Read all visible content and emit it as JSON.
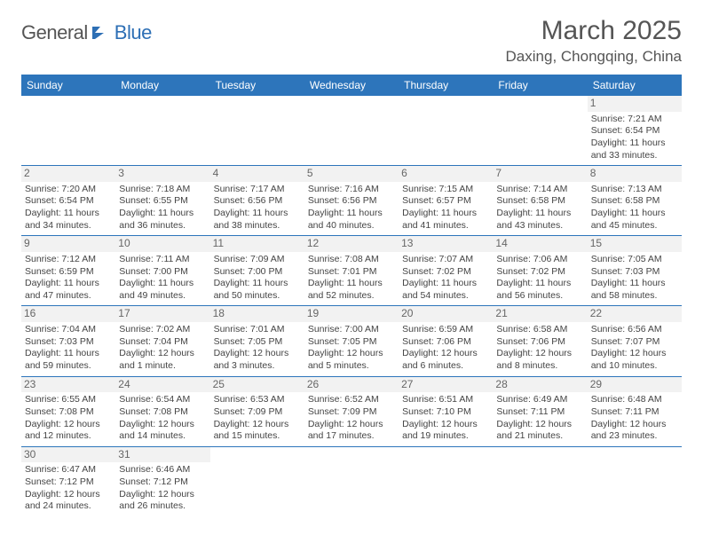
{
  "logo": {
    "text1": "General",
    "text2": "Blue"
  },
  "title": "March 2025",
  "location": "Daxing, Chongqing, China",
  "colors": {
    "header_bg": "#2d75bb",
    "header_text": "#ffffff",
    "border": "#2d75bb",
    "daynum_bg": "#f2f2f2"
  },
  "weekdays": [
    "Sunday",
    "Monday",
    "Tuesday",
    "Wednesday",
    "Thursday",
    "Friday",
    "Saturday"
  ],
  "weeks": [
    [
      null,
      null,
      null,
      null,
      null,
      null,
      {
        "d": "1",
        "r": "Sunrise: 7:21 AM",
        "s": "Sunset: 6:54 PM",
        "l": "Daylight: 11 hours and 33 minutes."
      }
    ],
    [
      {
        "d": "2",
        "r": "Sunrise: 7:20 AM",
        "s": "Sunset: 6:54 PM",
        "l": "Daylight: 11 hours and 34 minutes."
      },
      {
        "d": "3",
        "r": "Sunrise: 7:18 AM",
        "s": "Sunset: 6:55 PM",
        "l": "Daylight: 11 hours and 36 minutes."
      },
      {
        "d": "4",
        "r": "Sunrise: 7:17 AM",
        "s": "Sunset: 6:56 PM",
        "l": "Daylight: 11 hours and 38 minutes."
      },
      {
        "d": "5",
        "r": "Sunrise: 7:16 AM",
        "s": "Sunset: 6:56 PM",
        "l": "Daylight: 11 hours and 40 minutes."
      },
      {
        "d": "6",
        "r": "Sunrise: 7:15 AM",
        "s": "Sunset: 6:57 PM",
        "l": "Daylight: 11 hours and 41 minutes."
      },
      {
        "d": "7",
        "r": "Sunrise: 7:14 AM",
        "s": "Sunset: 6:58 PM",
        "l": "Daylight: 11 hours and 43 minutes."
      },
      {
        "d": "8",
        "r": "Sunrise: 7:13 AM",
        "s": "Sunset: 6:58 PM",
        "l": "Daylight: 11 hours and 45 minutes."
      }
    ],
    [
      {
        "d": "9",
        "r": "Sunrise: 7:12 AM",
        "s": "Sunset: 6:59 PM",
        "l": "Daylight: 11 hours and 47 minutes."
      },
      {
        "d": "10",
        "r": "Sunrise: 7:11 AM",
        "s": "Sunset: 7:00 PM",
        "l": "Daylight: 11 hours and 49 minutes."
      },
      {
        "d": "11",
        "r": "Sunrise: 7:09 AM",
        "s": "Sunset: 7:00 PM",
        "l": "Daylight: 11 hours and 50 minutes."
      },
      {
        "d": "12",
        "r": "Sunrise: 7:08 AM",
        "s": "Sunset: 7:01 PM",
        "l": "Daylight: 11 hours and 52 minutes."
      },
      {
        "d": "13",
        "r": "Sunrise: 7:07 AM",
        "s": "Sunset: 7:02 PM",
        "l": "Daylight: 11 hours and 54 minutes."
      },
      {
        "d": "14",
        "r": "Sunrise: 7:06 AM",
        "s": "Sunset: 7:02 PM",
        "l": "Daylight: 11 hours and 56 minutes."
      },
      {
        "d": "15",
        "r": "Sunrise: 7:05 AM",
        "s": "Sunset: 7:03 PM",
        "l": "Daylight: 11 hours and 58 minutes."
      }
    ],
    [
      {
        "d": "16",
        "r": "Sunrise: 7:04 AM",
        "s": "Sunset: 7:03 PM",
        "l": "Daylight: 11 hours and 59 minutes."
      },
      {
        "d": "17",
        "r": "Sunrise: 7:02 AM",
        "s": "Sunset: 7:04 PM",
        "l": "Daylight: 12 hours and 1 minute."
      },
      {
        "d": "18",
        "r": "Sunrise: 7:01 AM",
        "s": "Sunset: 7:05 PM",
        "l": "Daylight: 12 hours and 3 minutes."
      },
      {
        "d": "19",
        "r": "Sunrise: 7:00 AM",
        "s": "Sunset: 7:05 PM",
        "l": "Daylight: 12 hours and 5 minutes."
      },
      {
        "d": "20",
        "r": "Sunrise: 6:59 AM",
        "s": "Sunset: 7:06 PM",
        "l": "Daylight: 12 hours and 6 minutes."
      },
      {
        "d": "21",
        "r": "Sunrise: 6:58 AM",
        "s": "Sunset: 7:06 PM",
        "l": "Daylight: 12 hours and 8 minutes."
      },
      {
        "d": "22",
        "r": "Sunrise: 6:56 AM",
        "s": "Sunset: 7:07 PM",
        "l": "Daylight: 12 hours and 10 minutes."
      }
    ],
    [
      {
        "d": "23",
        "r": "Sunrise: 6:55 AM",
        "s": "Sunset: 7:08 PM",
        "l": "Daylight: 12 hours and 12 minutes."
      },
      {
        "d": "24",
        "r": "Sunrise: 6:54 AM",
        "s": "Sunset: 7:08 PM",
        "l": "Daylight: 12 hours and 14 minutes."
      },
      {
        "d": "25",
        "r": "Sunrise: 6:53 AM",
        "s": "Sunset: 7:09 PM",
        "l": "Daylight: 12 hours and 15 minutes."
      },
      {
        "d": "26",
        "r": "Sunrise: 6:52 AM",
        "s": "Sunset: 7:09 PM",
        "l": "Daylight: 12 hours and 17 minutes."
      },
      {
        "d": "27",
        "r": "Sunrise: 6:51 AM",
        "s": "Sunset: 7:10 PM",
        "l": "Daylight: 12 hours and 19 minutes."
      },
      {
        "d": "28",
        "r": "Sunrise: 6:49 AM",
        "s": "Sunset: 7:11 PM",
        "l": "Daylight: 12 hours and 21 minutes."
      },
      {
        "d": "29",
        "r": "Sunrise: 6:48 AM",
        "s": "Sunset: 7:11 PM",
        "l": "Daylight: 12 hours and 23 minutes."
      }
    ],
    [
      {
        "d": "30",
        "r": "Sunrise: 6:47 AM",
        "s": "Sunset: 7:12 PM",
        "l": "Daylight: 12 hours and 24 minutes."
      },
      {
        "d": "31",
        "r": "Sunrise: 6:46 AM",
        "s": "Sunset: 7:12 PM",
        "l": "Daylight: 12 hours and 26 minutes."
      },
      null,
      null,
      null,
      null,
      null
    ]
  ]
}
